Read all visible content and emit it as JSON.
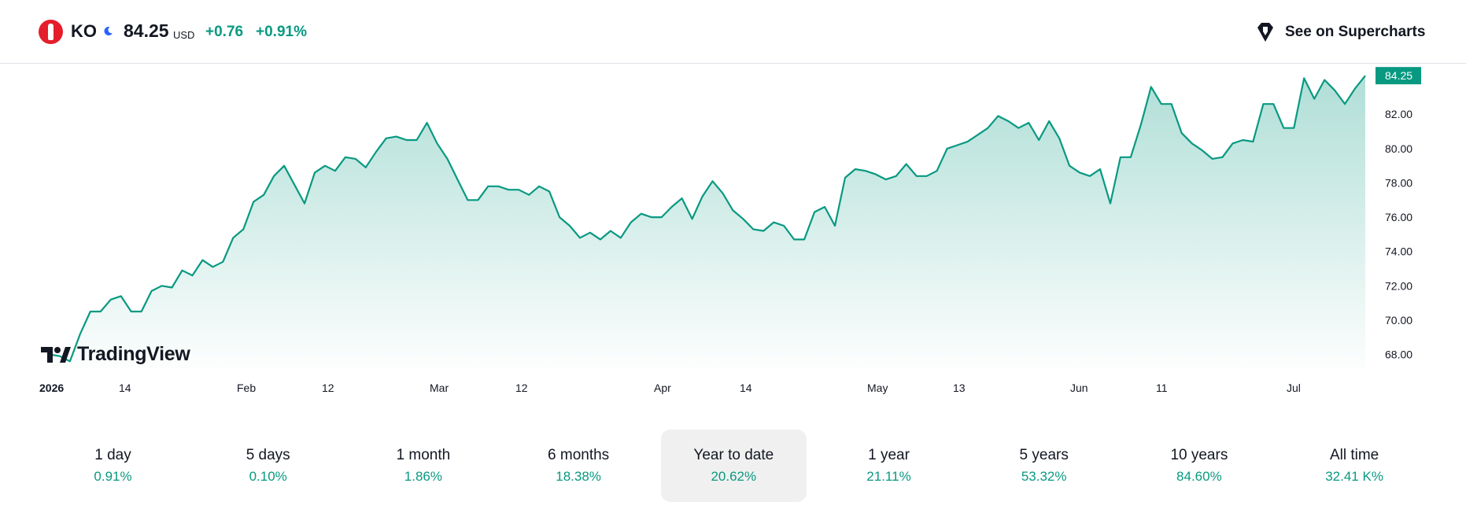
{
  "header": {
    "symbol": "KO",
    "price": "84.25",
    "currency": "USD",
    "change_abs": "+0.76",
    "change_pct": "+0.91%",
    "supercharts_label": "See on Supercharts",
    "accent_color": "#089981",
    "brand_color": "#e41e2b"
  },
  "brand": {
    "name": "TradingView"
  },
  "chart_data": {
    "type": "area",
    "series": [
      {
        "values": [
          68.0,
          67.9,
          67.6,
          69.2,
          70.5,
          70.5,
          71.2,
          71.4,
          70.5,
          70.5,
          71.7,
          72.0,
          71.9,
          72.9,
          72.6,
          73.5,
          73.1,
          73.4,
          74.8,
          75.3,
          76.9,
          77.3,
          78.4,
          79.0,
          77.9,
          76.8,
          78.6,
          79.0,
          78.7,
          79.5,
          79.4,
          78.9,
          79.8,
          80.6,
          80.7,
          80.5,
          80.5,
          81.5,
          80.3,
          79.4,
          78.2,
          77.0,
          77.0,
          77.8,
          77.8,
          77.6,
          77.6,
          77.3,
          77.8,
          77.5,
          76.0,
          75.5,
          74.8,
          75.1,
          74.7,
          75.2,
          74.8,
          75.7,
          76.2,
          76.0,
          76.0,
          76.6,
          77.1,
          75.9,
          77.2,
          78.1,
          77.4,
          76.4,
          75.9,
          75.3,
          75.2,
          75.7,
          75.5,
          74.7,
          74.7,
          76.3,
          76.6,
          75.5,
          78.3,
          78.8,
          78.7,
          78.5,
          78.2,
          78.4,
          79.1,
          78.4,
          78.4,
          78.7,
          80.0,
          80.2,
          80.4,
          80.8,
          81.2,
          81.9,
          81.6,
          81.2,
          81.5,
          80.5,
          81.6,
          80.6,
          79.0,
          78.6,
          78.4,
          78.8,
          76.8,
          79.5,
          79.5,
          81.4,
          83.6,
          82.6,
          82.6,
          80.9,
          80.3,
          79.9,
          79.4,
          79.5,
          80.3,
          80.5,
          80.4,
          82.6,
          82.6,
          81.2,
          81.2,
          84.1,
          82.9,
          84.0,
          83.4,
          82.6,
          83.5,
          84.25
        ]
      }
    ],
    "last_value": 84.25,
    "x_ticks": [
      "2026",
      "14",
      "Feb",
      "12",
      "Mar",
      "12",
      "Apr",
      "14",
      "May",
      "13",
      "Jun",
      "11",
      "Jul"
    ],
    "y_ticks": [
      "68.00",
      "70.00",
      "72.00",
      "74.00",
      "76.00",
      "78.00",
      "80.00",
      "82.00"
    ],
    "ylim": [
      67.2,
      84.9
    ],
    "line_color": "#089981",
    "grid": false,
    "y_axis_position": "right"
  },
  "periods": [
    {
      "label": "1 day",
      "value": "0.91%"
    },
    {
      "label": "5 days",
      "value": "0.10%"
    },
    {
      "label": "1 month",
      "value": "1.86%"
    },
    {
      "label": "6 months",
      "value": "18.38%"
    },
    {
      "label": "Year to date",
      "value": "20.62%",
      "active": true
    },
    {
      "label": "1 year",
      "value": "21.11%"
    },
    {
      "label": "5 years",
      "value": "53.32%"
    },
    {
      "label": "10 years",
      "value": "84.60%"
    },
    {
      "label": "All time",
      "value": "32.41 K%"
    }
  ]
}
